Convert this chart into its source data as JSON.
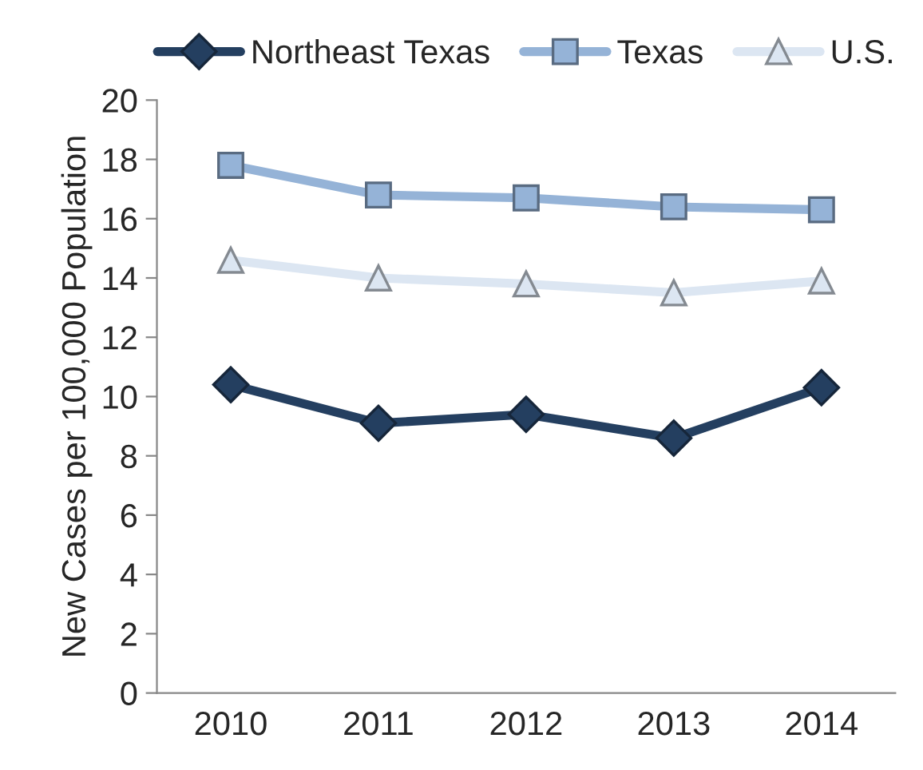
{
  "chart_data": {
    "type": "line",
    "ylabel": "New Cases per 100,000 Population",
    "categories": [
      "2010",
      "2011",
      "2012",
      "2013",
      "2014"
    ],
    "series": [
      {
        "name": "Northeast Texas",
        "color": "#243f60",
        "marker": "diamond",
        "values": [
          10.4,
          9.1,
          9.4,
          8.6,
          10.3
        ]
      },
      {
        "name": "Texas",
        "color": "#95b3d7",
        "marker": "square",
        "values": [
          17.8,
          16.8,
          16.7,
          16.4,
          16.3
        ]
      },
      {
        "name": "U.S.",
        "color": "#dce6f2",
        "marker": "triangle",
        "values": [
          14.6,
          14.0,
          13.8,
          13.5,
          13.9
        ]
      }
    ],
    "ylim": [
      0,
      20
    ],
    "yticks": [
      0,
      2,
      4,
      6,
      8,
      10,
      12,
      14,
      16,
      18,
      20
    ],
    "grid": false,
    "legend": "top",
    "line_style": "solid"
  }
}
